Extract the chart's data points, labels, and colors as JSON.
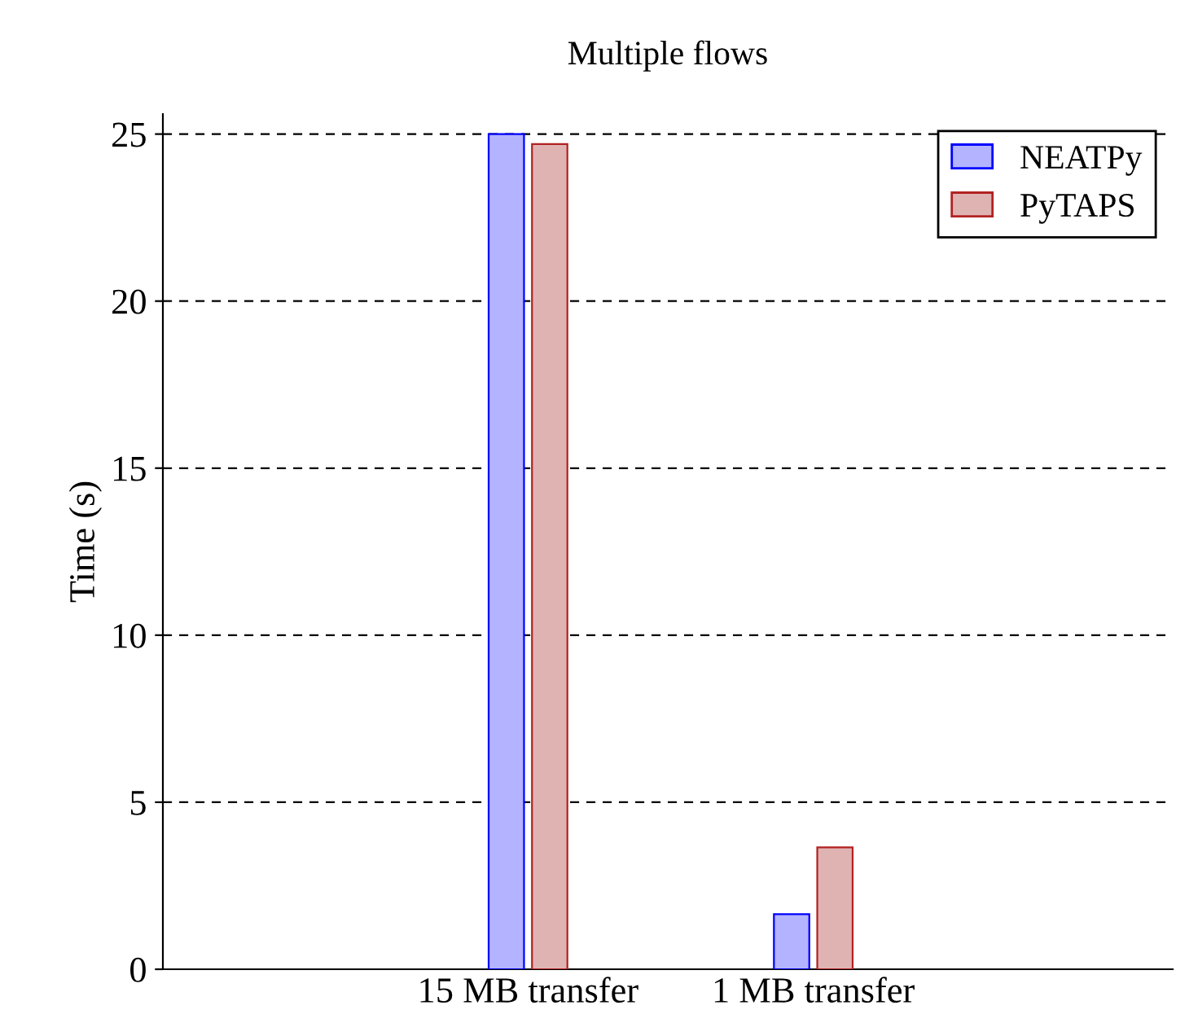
{
  "chart_data": {
    "type": "bar",
    "title": "Multiple flows",
    "ylabel": "Time (s)",
    "categories": [
      "15 MB transfer",
      "1 MB transfer"
    ],
    "series": [
      {
        "name": "NEATPy",
        "color": "#b3b3ff",
        "values": [
          25.0,
          1.65
        ]
      },
      {
        "name": "PyTAPS",
        "color": "#e0b3b3",
        "values": [
          24.7,
          3.65
        ]
      }
    ],
    "ylim": [
      0,
      25.6
    ],
    "yticks": [
      0,
      5,
      10,
      15,
      20,
      25
    ],
    "grid": "y",
    "legend": "top right"
  }
}
